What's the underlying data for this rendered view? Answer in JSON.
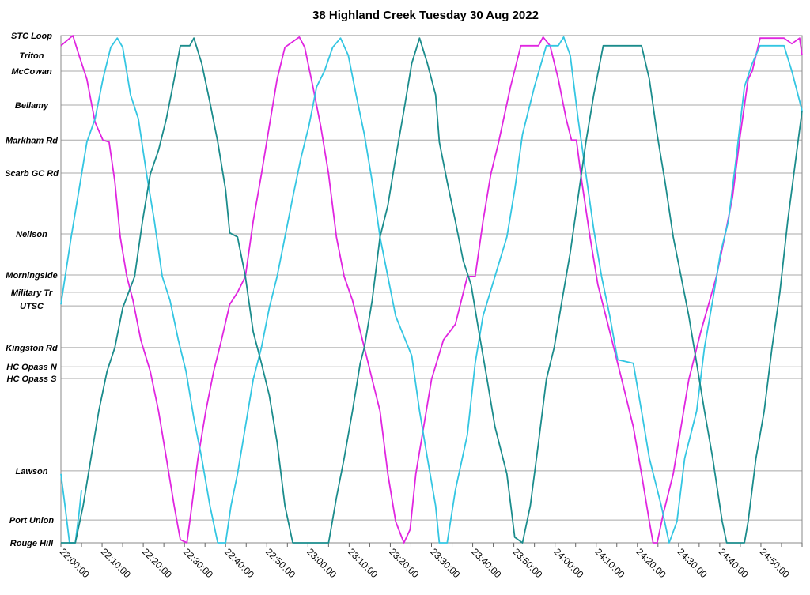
{
  "chart_data": {
    "type": "line",
    "title": "38 Highland Creek Tuesday 30 Aug 2022",
    "xlabel": "",
    "ylabel": "",
    "x_unit": "minutes after 22:00:00",
    "xlim": [
      0,
      180
    ],
    "x_ticks": [
      "22:00:00",
      "22:10:00",
      "22:20:00",
      "22:30:00",
      "22:40:00",
      "22:50:00",
      "23:00:00",
      "23:10:00",
      "23:20:00",
      "23:30:00",
      "23:40:00",
      "23:50:00",
      "24:00:00",
      "24:10:00",
      "24:20:00",
      "24:30:00",
      "24:40:00",
      "24:50:00"
    ],
    "y_unit": "route position (% of route from Rouge Hill)",
    "ylim": [
      0,
      100
    ],
    "stops": [
      {
        "name": "STC Loop",
        "pos": 100
      },
      {
        "name": "Triton",
        "pos": 96.1
      },
      {
        "name": "McCowan",
        "pos": 93.0
      },
      {
        "name": "Bellamy",
        "pos": 86.3
      },
      {
        "name": "Markham Rd",
        "pos": 79.4
      },
      {
        "name": "Scarb GC Rd",
        "pos": 72.9
      },
      {
        "name": "Neilson",
        "pos": 60.9
      },
      {
        "name": "Morningside",
        "pos": 52.8
      },
      {
        "name": "Military Tr",
        "pos": 49.4
      },
      {
        "name": "UTSC",
        "pos": 46.7
      },
      {
        "name": "Kingston Rd",
        "pos": 38.5
      },
      {
        "name": "HC Opass N",
        "pos": 34.7
      },
      {
        "name": "HC Opass S",
        "pos": 32.4
      },
      {
        "name": "Lawson",
        "pos": 14.2
      },
      {
        "name": "Port Union",
        "pos": 4.5
      },
      {
        "name": "Rouge Hill",
        "pos": 0
      }
    ],
    "grid": true,
    "legend": "none",
    "series": [
      {
        "name": "vehicle-magenta",
        "color": "#e026e0",
        "points": [
          [
            0,
            98
          ],
          [
            2.9,
            100
          ],
          [
            4.4,
            96.1
          ],
          [
            6.3,
            91.4
          ],
          [
            8.3,
            82.9
          ],
          [
            10.2,
            79.4
          ],
          [
            11.7,
            79
          ],
          [
            13.1,
            71.2
          ],
          [
            14.4,
            60.3
          ],
          [
            16,
            52.5
          ],
          [
            17.5,
            47.8
          ],
          [
            19.4,
            40
          ],
          [
            21.7,
            33.8
          ],
          [
            23.7,
            26
          ],
          [
            25.6,
            16.7
          ],
          [
            27.5,
            7.3
          ],
          [
            29,
            0.6
          ],
          [
            30.6,
            0
          ],
          [
            31.3,
            4.2
          ],
          [
            33.3,
            16.7
          ],
          [
            35.2,
            26
          ],
          [
            37.1,
            33.8
          ],
          [
            39,
            40
          ],
          [
            41,
            47
          ],
          [
            42.9,
            49.4
          ],
          [
            44.8,
            52.5
          ],
          [
            46.7,
            63.4
          ],
          [
            48.7,
            72.7
          ],
          [
            50.6,
            82.1
          ],
          [
            52.5,
            91.4
          ],
          [
            54.4,
            97.7
          ],
          [
            57.9,
            99.7
          ],
          [
            59.2,
            97.7
          ],
          [
            61.2,
            89.9
          ],
          [
            63.1,
            82.1
          ],
          [
            65,
            72.7
          ],
          [
            66.9,
            60.3
          ],
          [
            68.8,
            52.5
          ],
          [
            70.8,
            47.8
          ],
          [
            73.7,
            38.5
          ],
          [
            75.6,
            32.2
          ],
          [
            77.5,
            26
          ],
          [
            79.4,
            13.6
          ],
          [
            81.3,
            4.2
          ],
          [
            83.3,
            0
          ],
          [
            84.8,
            2.6
          ],
          [
            86.2,
            13.6
          ],
          [
            88.1,
            22.9
          ],
          [
            90,
            32.2
          ],
          [
            92.9,
            40
          ],
          [
            95.8,
            43.1
          ],
          [
            98.7,
            52.5
          ],
          [
            100.6,
            52.5
          ],
          [
            102.5,
            63.4
          ],
          [
            104.4,
            72.7
          ],
          [
            106.3,
            79
          ],
          [
            109.2,
            89.9
          ],
          [
            111.7,
            98
          ],
          [
            116,
            98
          ],
          [
            117.1,
            99.7
          ],
          [
            118.8,
            98
          ],
          [
            120.8,
            91.4
          ],
          [
            122.7,
            83.6
          ],
          [
            124,
            79.4
          ],
          [
            125.2,
            79.4
          ],
          [
            126.5,
            71.2
          ],
          [
            128.5,
            60.3
          ],
          [
            130.4,
            50.9
          ],
          [
            133.3,
            41.6
          ],
          [
            136.2,
            32.2
          ],
          [
            139,
            22.9
          ],
          [
            141,
            13.6
          ],
          [
            142.9,
            4.2
          ],
          [
            143.8,
            0
          ],
          [
            144.8,
            0
          ],
          [
            146.3,
            5.8
          ],
          [
            148.7,
            13.6
          ],
          [
            150.6,
            22.9
          ],
          [
            152.5,
            32.2
          ],
          [
            155.4,
            41.6
          ],
          [
            157.3,
            47
          ],
          [
            159.2,
            52.5
          ],
          [
            161.2,
            60.3
          ],
          [
            163.1,
            68.1
          ],
          [
            165,
            80.5
          ],
          [
            166.9,
            91.4
          ],
          [
            167.9,
            93
          ],
          [
            169.8,
            99.5
          ],
          [
            175.6,
            99.5
          ],
          [
            177.5,
            98.4
          ],
          [
            179.4,
            99.5
          ],
          [
            180,
            96.1
          ]
        ]
      },
      {
        "name": "vehicle-cyan",
        "color": "#34c6e2",
        "points": [
          [
            0,
            47
          ],
          [
            2.5,
            60.3
          ],
          [
            4.4,
            69.6
          ],
          [
            6.3,
            79
          ],
          [
            8.3,
            83.6
          ],
          [
            10.2,
            91.4
          ],
          [
            12.1,
            97.7
          ],
          [
            13.7,
            99.5
          ],
          [
            15,
            97.7
          ],
          [
            16.9,
            88.3
          ],
          [
            18.8,
            83.6
          ],
          [
            20.8,
            72.7
          ],
          [
            22.7,
            63.4
          ],
          [
            24.6,
            52.5
          ],
          [
            26.5,
            47.8
          ],
          [
            28.5,
            40
          ],
          [
            30.4,
            33.8
          ],
          [
            32.3,
            24.5
          ],
          [
            34.2,
            16.7
          ],
          [
            36.2,
            7.3
          ],
          [
            38.1,
            0
          ],
          [
            40,
            0
          ],
          [
            41.3,
            7.3
          ],
          [
            42.9,
            13.6
          ],
          [
            44.8,
            22.9
          ],
          [
            46.7,
            32.2
          ],
          [
            48.7,
            38.5
          ],
          [
            50.6,
            46.3
          ],
          [
            52.5,
            52.5
          ],
          [
            54.4,
            60.3
          ],
          [
            56.3,
            68.1
          ],
          [
            58.3,
            75.9
          ],
          [
            60.2,
            82.1
          ],
          [
            62.1,
            89.9
          ],
          [
            64,
            93
          ],
          [
            66,
            97.7
          ],
          [
            67.9,
            99.5
          ],
          [
            69.8,
            96.1
          ],
          [
            71.7,
            88.3
          ],
          [
            73.7,
            80.5
          ],
          [
            75.6,
            71.2
          ],
          [
            77.5,
            60.3
          ],
          [
            79.4,
            52.5
          ],
          [
            81.3,
            44.7
          ],
          [
            85.2,
            36.9
          ],
          [
            87.1,
            26
          ],
          [
            89,
            16.7
          ],
          [
            91,
            7.3
          ],
          [
            91.9,
            0
          ],
          [
            93.8,
            0
          ],
          [
            95.8,
            10.4
          ],
          [
            98.7,
            21.3
          ],
          [
            100.6,
            35.4
          ],
          [
            102.5,
            44.7
          ],
          [
            105.4,
            52.5
          ],
          [
            108.3,
            60.3
          ],
          [
            110.2,
            69.6
          ],
          [
            112.1,
            80.5
          ],
          [
            115,
            89.9
          ],
          [
            117.9,
            98
          ],
          [
            120.8,
            98
          ],
          [
            122.1,
            99.7
          ],
          [
            123.7,
            96.1
          ],
          [
            125.6,
            83.6
          ],
          [
            127.5,
            72.7
          ],
          [
            129.4,
            61.8
          ],
          [
            131.3,
            52.5
          ],
          [
            133.3,
            44.7
          ],
          [
            135.2,
            36.1
          ],
          [
            139,
            35.4
          ],
          [
            141,
            26
          ],
          [
            142.9,
            16.7
          ],
          [
            145.8,
            7.3
          ],
          [
            147.7,
            0
          ],
          [
            149.6,
            4.2
          ],
          [
            151.5,
            16.7
          ],
          [
            154.4,
            26
          ],
          [
            156.3,
            38.5
          ],
          [
            158.3,
            47.8
          ],
          [
            160.2,
            57.2
          ],
          [
            162.1,
            63.4
          ],
          [
            164,
            75.9
          ],
          [
            166,
            89.9
          ],
          [
            167.9,
            94.5
          ],
          [
            169.8,
            98
          ],
          [
            175.6,
            98
          ],
          [
            177.5,
            93
          ],
          [
            180,
            85.2
          ]
        ]
      },
      {
        "name": "vehicle-cyan-earlier",
        "color": "#34c6e2",
        "points": [
          [
            0,
            13.6
          ],
          [
            1,
            7.3
          ],
          [
            2.1,
            0
          ],
          [
            3.5,
            0
          ],
          [
            4.4,
            5.8
          ],
          [
            5,
            10.4
          ]
        ]
      },
      {
        "name": "vehicle-teal",
        "color": "#1b8c8c",
        "points": [
          [
            0,
            0
          ],
          [
            3.5,
            0
          ],
          [
            5.4,
            7.3
          ],
          [
            7.3,
            16.7
          ],
          [
            9.2,
            26
          ],
          [
            11.2,
            33.8
          ],
          [
            13.1,
            38.5
          ],
          [
            15,
            46.3
          ],
          [
            17.9,
            52.5
          ],
          [
            19.8,
            63.4
          ],
          [
            21.7,
            72.7
          ],
          [
            23.7,
            77.4
          ],
          [
            25.6,
            83.6
          ],
          [
            27.5,
            91.4
          ],
          [
            29,
            98
          ],
          [
            31.3,
            98
          ],
          [
            32.3,
            99.5
          ],
          [
            34.2,
            94.5
          ],
          [
            36.2,
            86.8
          ],
          [
            38.1,
            79
          ],
          [
            40,
            69.6
          ],
          [
            41,
            61.1
          ],
          [
            42.9,
            60.3
          ],
          [
            44.8,
            52.5
          ],
          [
            46.7,
            41.6
          ],
          [
            48.7,
            35.4
          ],
          [
            50.6,
            29.1
          ],
          [
            52.5,
            19.8
          ],
          [
            54.4,
            7.3
          ],
          [
            56.3,
            0
          ],
          [
            65,
            0
          ],
          [
            66.9,
            8.9
          ],
          [
            68.8,
            16.7
          ],
          [
            70.8,
            26
          ],
          [
            72.7,
            35.4
          ],
          [
            73.7,
            38.5
          ],
          [
            75.6,
            47.8
          ],
          [
            77.5,
            60.3
          ],
          [
            79.4,
            66.5
          ],
          [
            81.3,
            75.9
          ],
          [
            83.3,
            85.2
          ],
          [
            85.2,
            94.5
          ],
          [
            87.1,
            99.5
          ],
          [
            89,
            94.5
          ],
          [
            91,
            88.3
          ],
          [
            91.9,
            79
          ],
          [
            93.8,
            71.2
          ],
          [
            95.8,
            63.4
          ],
          [
            97.7,
            55.6
          ],
          [
            99.6,
            50.9
          ],
          [
            101.5,
            41.6
          ],
          [
            103.5,
            32.2
          ],
          [
            105.4,
            22.9
          ],
          [
            108.3,
            13.6
          ],
          [
            110.2,
            1.1
          ],
          [
            112.1,
            0
          ],
          [
            114,
            7.3
          ],
          [
            116,
            19.8
          ],
          [
            117.9,
            32.2
          ],
          [
            119.8,
            38.5
          ],
          [
            121.7,
            47.8
          ],
          [
            123.7,
            57.2
          ],
          [
            125.6,
            68.1
          ],
          [
            127.5,
            79
          ],
          [
            129.4,
            88.3
          ],
          [
            131.7,
            98
          ],
          [
            141,
            98
          ],
          [
            142.9,
            91.4
          ],
          [
            144.8,
            80.5
          ],
          [
            146.7,
            71.2
          ],
          [
            148.7,
            60.3
          ],
          [
            150.6,
            52.5
          ],
          [
            152.5,
            44.7
          ],
          [
            154.4,
            35.4
          ],
          [
            156.3,
            26
          ],
          [
            158.3,
            16.7
          ],
          [
            160.6,
            4.2
          ],
          [
            161.7,
            0
          ],
          [
            166,
            0
          ],
          [
            166.9,
            4.2
          ],
          [
            168.8,
            16.7
          ],
          [
            170.8,
            26
          ],
          [
            172.7,
            38.5
          ],
          [
            174.6,
            49.4
          ],
          [
            176.5,
            63.4
          ],
          [
            178.5,
            75.9
          ],
          [
            180,
            85.2
          ]
        ]
      }
    ]
  }
}
